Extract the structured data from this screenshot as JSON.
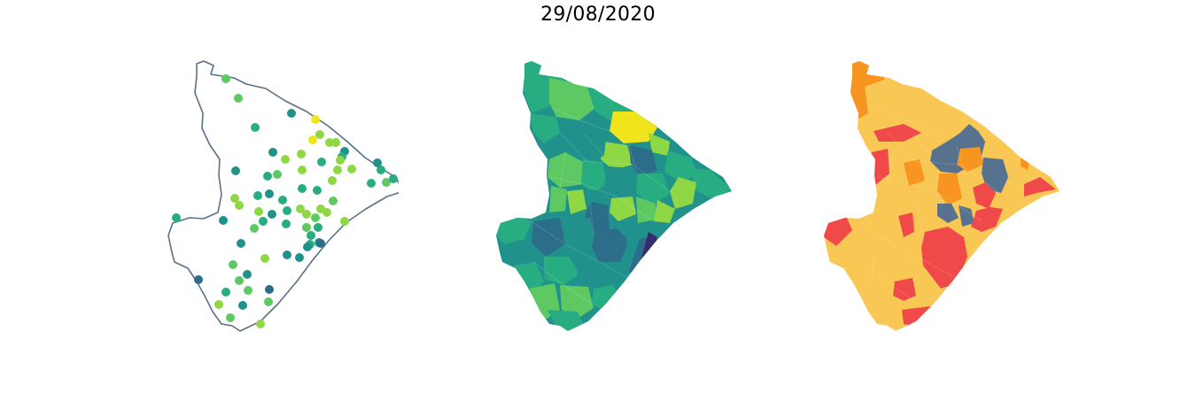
{
  "figure": {
    "title": "29/08/2020"
  },
  "colors": {
    "outline": "#5a7189",
    "viridis_dark": "#3a2b6e",
    "viridis_teal_dark": "#2c6d8a",
    "viridis_teal": "#21918c",
    "viridis_green": "#27ad81",
    "viridis_lightgreen": "#5ec962",
    "viridis_lime": "#8fd744",
    "viridis_yellow": "#f0e51a",
    "cat_yellow": "#f8c754",
    "cat_orange": "#f79520",
    "cat_red": "#f04949",
    "cat_slate": "#56728f"
  },
  "panels": [
    {
      "name": "point-map",
      "type": "points"
    },
    {
      "name": "choropleth-viridis",
      "type": "choropleth"
    },
    {
      "name": "choropleth-categorical",
      "type": "categorical"
    }
  ]
}
